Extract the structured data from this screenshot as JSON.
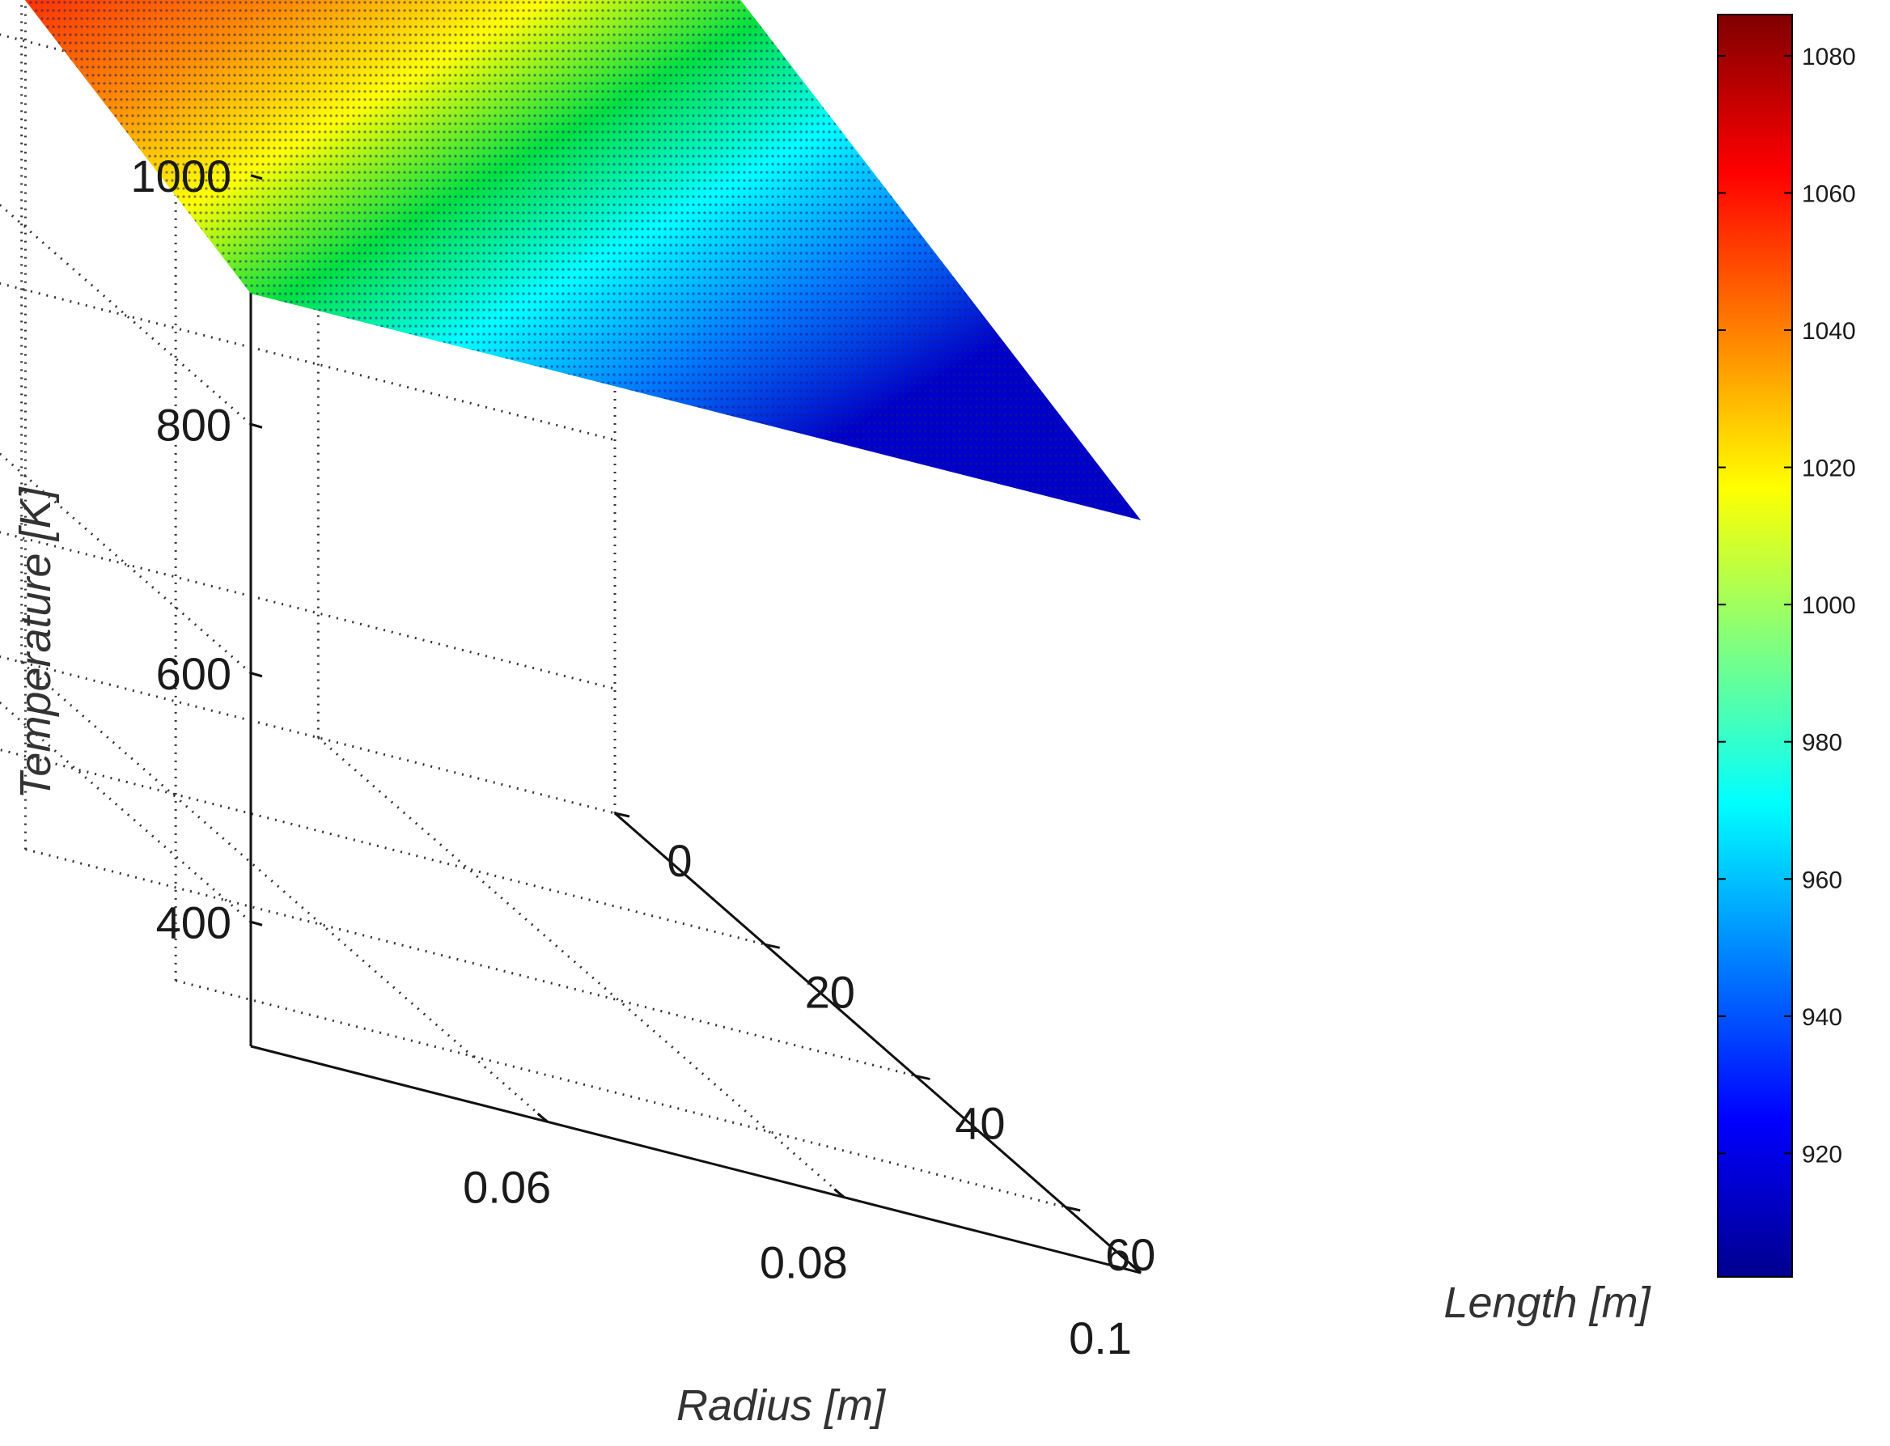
{
  "chart_data": {
    "type": "surface",
    "title": "",
    "xlabel": "Radius [m]",
    "ylabel": "Length [m]",
    "zlabel": "Temperature [K]",
    "grid": true,
    "view": "3d",
    "x_ticks": [
      0.06,
      0.08,
      0.1
    ],
    "x_tick_labels": [
      "0.06",
      "0.08",
      "0.1"
    ],
    "y_ticks": [
      0,
      20,
      40,
      60
    ],
    "y_tick_labels": [
      "0",
      "20",
      "40",
      "60"
    ],
    "z_ticks": [
      400,
      600,
      800,
      1000
    ],
    "z_tick_labels": [
      "400",
      "600",
      "800",
      "1000"
    ],
    "xlim": [
      0.04,
      0.1
    ],
    "ylim": [
      0,
      70
    ],
    "zlim": [
      300,
      1100
    ],
    "surface": {
      "description_note": "",
      "x": [
        0.04,
        0.1
      ],
      "y": [
        0,
        70
      ],
      "z_at": [
        {
          "x": 0.04,
          "y": 0,
          "z": 1085
        },
        {
          "x": 0.1,
          "y": 0,
          "z": 1085
        },
        {
          "x": 0.04,
          "y": 70,
          "z": 905
        },
        {
          "x": 0.1,
          "y": 70,
          "z": 905
        }
      ]
    },
    "colorbar": {
      "colormap": "jet",
      "range": [
        902,
        1086
      ],
      "ticks": [
        920,
        940,
        960,
        980,
        1000,
        1020,
        1040,
        1060,
        1080
      ],
      "tick_labels": [
        "920",
        "940",
        "960",
        "980",
        "1000",
        "1020",
        "1040",
        "1060",
        "1080"
      ],
      "location": "right"
    }
  }
}
